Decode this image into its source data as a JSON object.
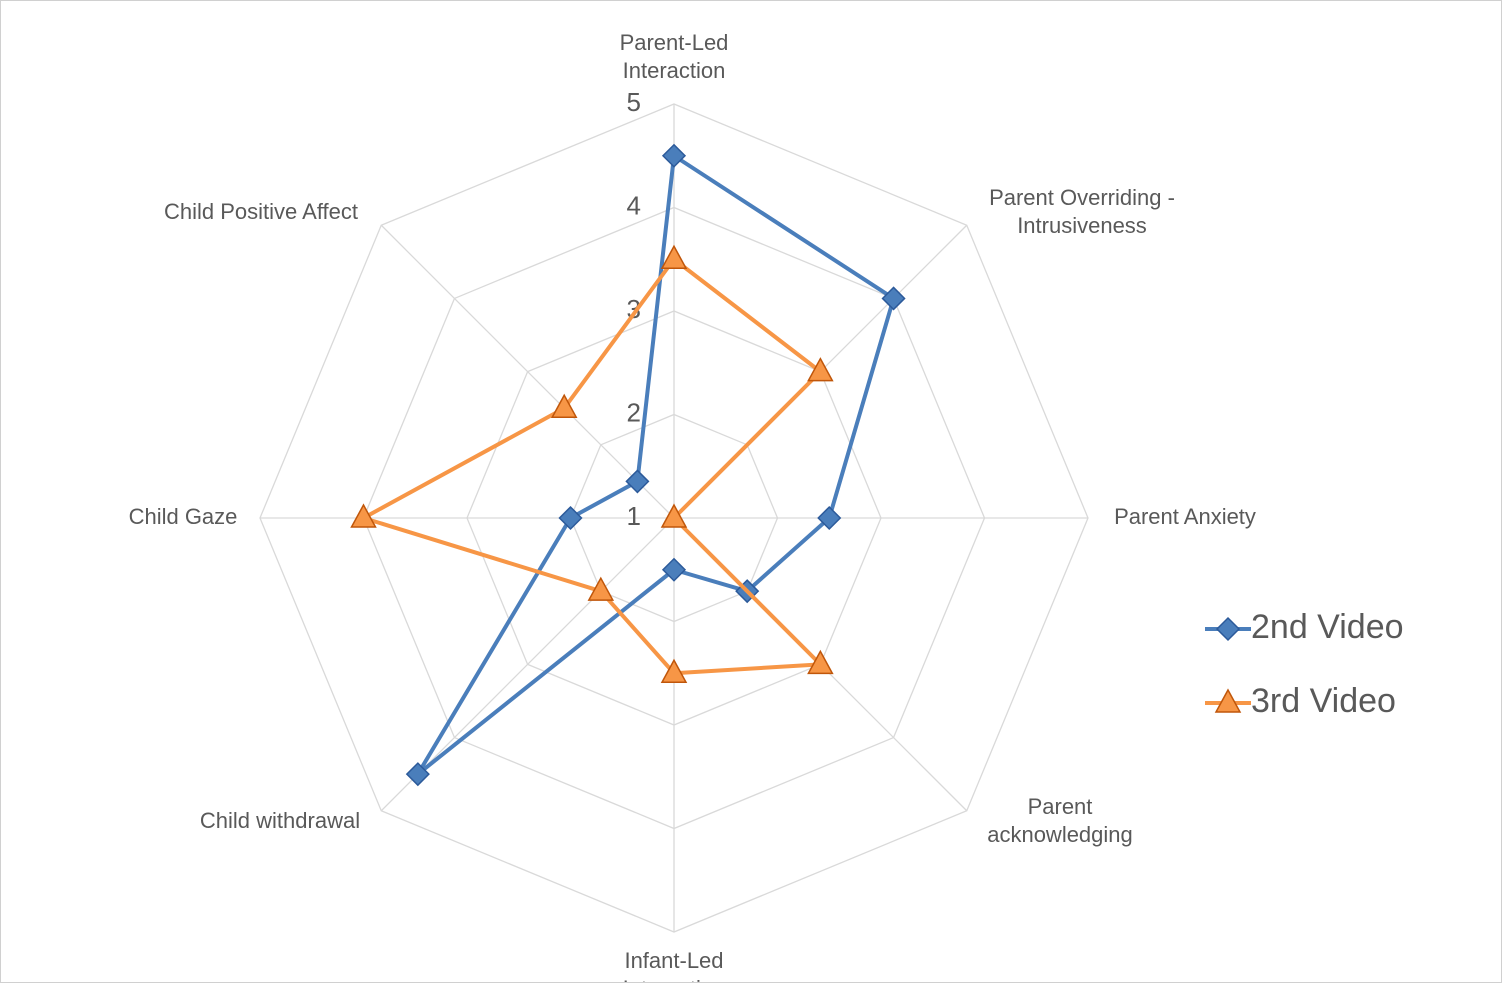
{
  "chart_data": {
    "type": "radar",
    "categories": [
      "Parent-Led Interaction",
      "Parent Overriding - Intrusiveness",
      "Parent Anxiety",
      "Parent acknowledging",
      "Infant-Led Interaction",
      "Child withdrawal",
      "Child Gaze",
      "Child Positive Affect"
    ],
    "series": [
      {
        "name": "2nd Video",
        "color": "#4a7ebb",
        "marker": "diamond",
        "values": [
          4.5,
          4,
          2.5,
          2,
          1.5,
          4.5,
          2,
          1.5
        ]
      },
      {
        "name": "3rd Video",
        "color": "#f79646",
        "marker": "triangle",
        "values": [
          3.5,
          3,
          1,
          3,
          2.5,
          2,
          4,
          2.5
        ]
      }
    ],
    "ylim": [
      1,
      5
    ],
    "yticks": [
      1,
      2,
      3,
      4,
      5
    ],
    "grid": true,
    "legend": "right"
  }
}
